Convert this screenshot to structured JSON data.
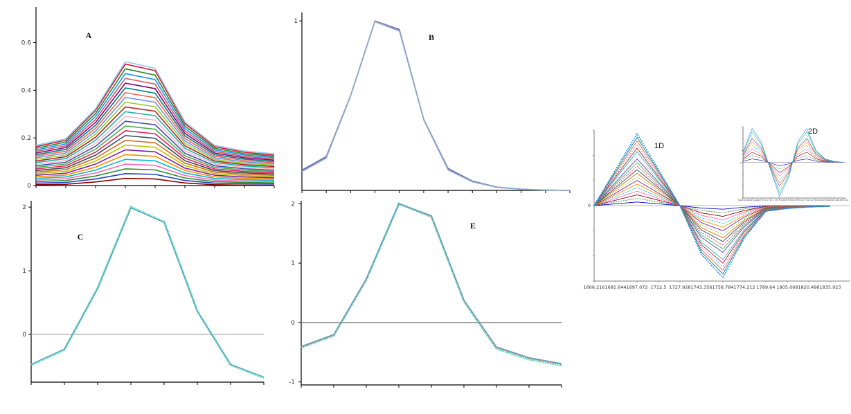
{
  "chart_data": [
    {
      "panel": "A",
      "type": "line",
      "title": "A",
      "ylim": [
        0,
        0.75
      ],
      "yticks": [
        "0",
        "0.2",
        "0.4",
        "0.6"
      ],
      "ytick_values": [
        0,
        0.2,
        0.4,
        0.6
      ],
      "x": [
        0,
        1,
        2,
        3,
        4,
        5,
        6,
        7,
        8
      ],
      "base_shape": [
        0.11,
        0.18,
        0.5,
        1.0,
        0.93,
        0.36,
        0.11,
        0.05,
        0.02
      ],
      "series_peaks": [
        0.03,
        0.05,
        0.07,
        0.09,
        0.11,
        0.13,
        0.15,
        0.17,
        0.19,
        0.21,
        0.23,
        0.25,
        0.27,
        0.29,
        0.31,
        0.33,
        0.35,
        0.37,
        0.39,
        0.41,
        0.43,
        0.45,
        0.47,
        0.49,
        0.51,
        0.52
      ],
      "colors": [
        "#8b0000",
        "#1f3fbf",
        "#2e8b2e",
        "#ff69b4",
        "#00bcd4",
        "#ff8c00",
        "#7b1fa2",
        "#c0c000",
        "#d2691e",
        "#2f4f4f",
        "#e91e63",
        "#4caf50",
        "#3f51b5",
        "#ffb6c1",
        "#20b2aa",
        "#b22222",
        "#9acd32",
        "#6495ed",
        "#ff6347",
        "#008080",
        "#800080",
        "#cd5c5c",
        "#1e90ff",
        "#228b22",
        "#dc143c",
        "#87ceeb"
      ]
    },
    {
      "panel": "B",
      "type": "line",
      "title": "B",
      "ylim": [
        0,
        1.05
      ],
      "yticks": [
        "1"
      ],
      "ytick_values": [
        1
      ],
      "x": [
        0,
        1,
        2,
        3,
        4,
        5,
        6,
        7,
        8,
        9,
        10,
        11
      ],
      "series": [
        {
          "color": "#5a6fb8",
          "values": [
            0.12,
            0.2,
            0.56,
            1.0,
            0.95,
            0.42,
            0.13,
            0.055,
            0.02,
            0.007,
            0.002,
            0.0
          ]
        },
        {
          "color": "#a07ab0",
          "values": [
            0.115,
            0.195,
            0.56,
            1.0,
            0.945,
            0.42,
            0.125,
            0.052,
            0.02,
            0.007,
            0.002,
            0.0
          ]
        },
        {
          "color": "#8ab4d0",
          "values": [
            0.11,
            0.19,
            0.555,
            0.995,
            0.94,
            0.415,
            0.12,
            0.05,
            0.018,
            0.006,
            0.002,
            0.0
          ]
        }
      ]
    },
    {
      "panel": "C",
      "type": "line",
      "title": "C",
      "ylim": [
        -0.75,
        2.1
      ],
      "yticks": [
        "0",
        "1",
        "2"
      ],
      "ytick_values": [
        0,
        1,
        2
      ],
      "zero_line": true,
      "x": [
        0,
        1,
        2,
        3,
        4,
        5,
        6,
        7
      ],
      "series": [
        {
          "color": "#40d8a8",
          "values": [
            -0.48,
            -0.24,
            0.73,
            2.0,
            1.77,
            0.37,
            -0.48,
            -0.68
          ]
        },
        {
          "color": "#5aa0c8",
          "values": [
            -0.47,
            -0.23,
            0.72,
            1.99,
            1.76,
            0.36,
            -0.47,
            -0.67
          ]
        }
      ]
    },
    {
      "panel": "E",
      "type": "line",
      "title": "E",
      "ylim": [
        -1.05,
        2.05
      ],
      "yticks": [
        "2",
        "1",
        "0",
        "-1"
      ],
      "ytick_values": [
        2,
        1,
        0,
        -1
      ],
      "zero_line": true,
      "x": [
        0,
        1,
        2,
        3,
        4,
        5,
        6,
        7,
        8
      ],
      "series": [
        {
          "color": "#40d8a8",
          "values": [
            -0.42,
            -0.22,
            0.72,
            2.0,
            1.78,
            0.36,
            -0.44,
            -0.62,
            -0.72
          ]
        },
        {
          "color": "#e07878",
          "values": [
            -0.41,
            -0.21,
            0.73,
            2.0,
            1.79,
            0.37,
            -0.42,
            -0.6,
            -0.7
          ]
        },
        {
          "color": "#5aa0c8",
          "values": [
            -0.4,
            -0.2,
            0.74,
            2.0,
            1.8,
            0.38,
            -0.41,
            -0.59,
            -0.69
          ]
        }
      ]
    },
    {
      "panel": "1D",
      "type": "line",
      "title": "1D",
      "ylim": [
        -1.05,
        1.05
      ],
      "yticks": [
        "0"
      ],
      "ytick_values": [
        0
      ],
      "categories": [
        "1666.216",
        "1681.644",
        "1697.072",
        "1712.5",
        "1727.928",
        "1743.356",
        "1758.784",
        "1774.212",
        "1789.64",
        "1805.068",
        "1820.496",
        "1835.923"
      ],
      "base_shape": [
        0,
        0.5,
        1.0,
        0.5,
        0,
        -0.68,
        -1.0,
        -0.45,
        -0.08,
        -0.04,
        -0.02,
        -0.01
      ],
      "series_peaks": [
        0.05,
        0.1,
        0.15,
        0.2,
        0.25,
        0.3,
        0.35,
        0.4,
        0.45,
        0.5,
        0.55,
        0.6,
        0.65,
        0.7,
        0.75,
        0.8,
        0.85,
        0.9,
        0.95,
        1.0
      ],
      "colors": [
        "#0000cc",
        "#2e8b2e",
        "#8b0000",
        "#ff69b4",
        "#00bcd4",
        "#ff8c00",
        "#7b1fa2",
        "#9acd32",
        "#d2691e",
        "#2f4f4f",
        "#e91e63",
        "#4caf50",
        "#3f51b5",
        "#ffb6c1",
        "#20b2aa",
        "#b22222",
        "#6495ed",
        "#ff6347",
        "#008080",
        "#1e90ff"
      ]
    },
    {
      "panel": "2D",
      "type": "line",
      "title": "2D",
      "ylim": [
        -1.05,
        1.05
      ],
      "yticks": [
        "0"
      ],
      "ytick_values": [
        0
      ],
      "categories": [
        "1666.216",
        "1681.644",
        "1697.072",
        "1712.5",
        "1727.928",
        "1743.356",
        "1758.784",
        "1774.212",
        "1789.64",
        "1805.068",
        "1820.496",
        "1835.923"
      ],
      "base_shape": [
        0.3,
        1.0,
        0.6,
        -0.2,
        -1.0,
        -0.45,
        0.6,
        1.0,
        0.35,
        0.1,
        0.03,
        0.0
      ],
      "series_peaks": [
        0.1,
        0.2,
        0.3,
        0.4,
        0.5,
        0.6,
        0.7,
        0.8,
        0.9,
        1.0
      ],
      "colors": [
        "#0000cc",
        "#2e8b2e",
        "#8b0000",
        "#ff69b4",
        "#00bcd4",
        "#ff8c00",
        "#7b1fa2",
        "#9acd32",
        "#20b2aa",
        "#1e90ff"
      ]
    }
  ]
}
